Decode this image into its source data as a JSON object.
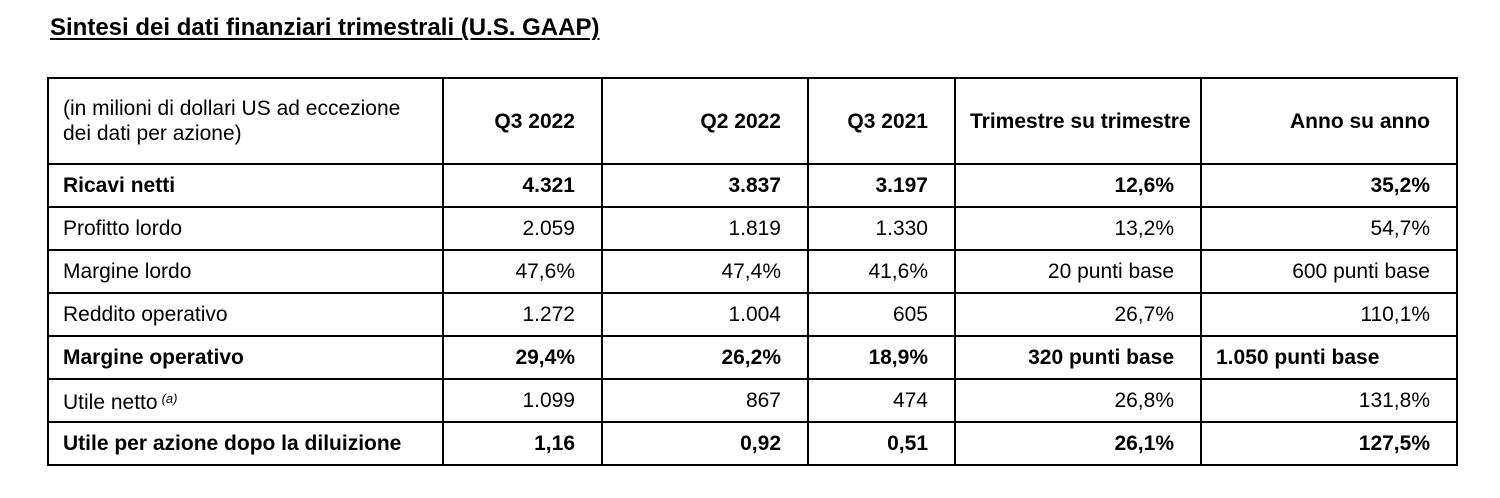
{
  "title": "Sintesi dei dati finanziari trimestrali (U.S. GAAP)",
  "table": {
    "header": {
      "label": "(in milioni di dollari US ad eccezione dei dati per azione)",
      "col1": "Q3 2022",
      "col2": "Q2 2022",
      "col3": "Q3 2021",
      "col4": "Trimestre su trimestre",
      "col5": "Anno su anno"
    },
    "rows": [
      {
        "label": "Ricavi netti",
        "v1": "4.321",
        "v2": "3.837",
        "v3": "3.197",
        "v4": "12,6%",
        "v5": "35,2%",
        "bold": true
      },
      {
        "label": "Profitto lordo",
        "v1": "2.059",
        "v2": "1.819",
        "v3": "1.330",
        "v4": "13,2%",
        "v5": "54,7%",
        "bold": false
      },
      {
        "label": "Margine lordo",
        "v1": "47,6%",
        "v2": "47,4%",
        "v3": "41,6%",
        "v4": "20 punti base",
        "v5": "600 punti base",
        "bold": false
      },
      {
        "label": "Reddito operativo",
        "v1": "1.272",
        "v2": "1.004",
        "v3": "605",
        "v4": "26,7%",
        "v5": "110,1%",
        "bold": false
      },
      {
        "label": "Margine operativo",
        "v1": "29,4%",
        "v2": "26,2%",
        "v3": "18,9%",
        "v4": "320 punti base",
        "v5": "1.050 punti base",
        "bold": true
      },
      {
        "label": "Utile netto",
        "note": "(a)",
        "v1": "1.099",
        "v2": "867",
        "v3": "474",
        "v4": "26,8%",
        "v5": "131,8%",
        "bold": false
      },
      {
        "label": "Utile per azione dopo la diluizione",
        "v1": "1,16",
        "v2": "0,92",
        "v3": "0,51",
        "v4": "26,1%",
        "v5": "127,5%",
        "bold": true
      }
    ]
  }
}
